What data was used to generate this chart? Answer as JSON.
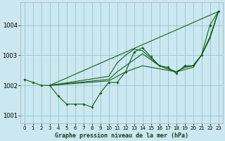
{
  "title": "Graphe pression niveau de la mer (hPa)",
  "bg_color": "#cbe8f0",
  "grid_color": "#8ec8cc",
  "line_color": "#1a5c1a",
  "xlim": [
    -0.5,
    23.5
  ],
  "ylim": [
    1000.75,
    1004.75
  ],
  "yticks": [
    1001,
    1002,
    1003,
    1004
  ],
  "xticks": [
    0,
    1,
    2,
    3,
    4,
    5,
    6,
    7,
    8,
    9,
    10,
    11,
    12,
    13,
    14,
    15,
    16,
    17,
    18,
    19,
    20,
    21,
    22,
    23
  ],
  "series": [
    {
      "x": [
        0,
        1,
        2,
        3,
        4,
        5,
        6,
        7,
        8,
        9,
        10,
        11,
        12,
        13,
        14,
        15,
        16,
        17,
        18,
        19,
        20,
        21,
        22,
        23
      ],
      "y": [
        1002.2,
        1002.1,
        1002.0,
        1002.0,
        1001.65,
        1001.38,
        1001.38,
        1001.38,
        1001.28,
        1001.75,
        1002.1,
        1002.1,
        1002.45,
        1003.1,
        1003.25,
        1002.95,
        1002.65,
        1002.6,
        1002.4,
        1002.65,
        1002.65,
        1003.0,
        1004.0,
        1004.45
      ]
    },
    {
      "x": [
        3,
        23
      ],
      "y": [
        1002.0,
        1004.45
      ]
    },
    {
      "x": [
        3,
        10,
        12,
        14,
        16,
        18,
        20,
        21,
        22,
        23
      ],
      "y": [
        1002.0,
        1002.15,
        1002.45,
        1002.65,
        1002.55,
        1002.45,
        1002.6,
        1003.0,
        1003.55,
        1004.45
      ]
    },
    {
      "x": [
        3,
        10,
        11,
        12,
        13,
        14,
        15,
        16,
        17,
        18,
        19,
        20,
        21,
        22,
        23
      ],
      "y": [
        1002.0,
        1002.2,
        1002.45,
        1002.65,
        1002.85,
        1003.05,
        1002.85,
        1002.65,
        1002.55,
        1002.45,
        1002.6,
        1002.65,
        1003.0,
        1003.6,
        1004.45
      ]
    },
    {
      "x": [
        3,
        10,
        11,
        12,
        13,
        14,
        15,
        16,
        17,
        18,
        19,
        20,
        21,
        22,
        23
      ],
      "y": [
        1002.0,
        1002.3,
        1002.75,
        1003.0,
        1003.2,
        1003.15,
        1002.9,
        1002.65,
        1002.55,
        1002.45,
        1002.6,
        1002.65,
        1003.0,
        1003.6,
        1004.45
      ]
    }
  ]
}
